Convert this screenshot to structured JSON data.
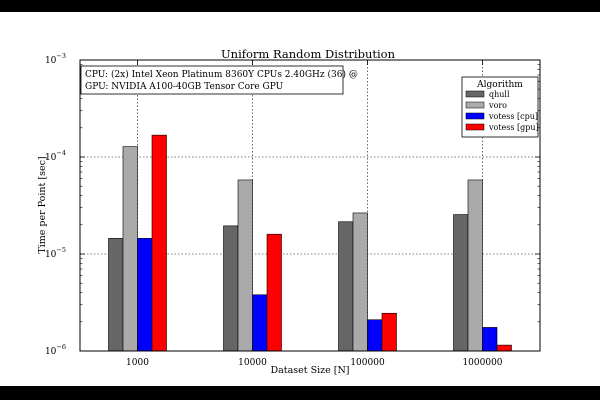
{
  "chart_data": {
    "type": "bar",
    "title": "Uniform Random Distribution",
    "xlabel": "Dataset Size [N]",
    "ylabel": "Time per Point [sec]",
    "yscale": "log",
    "ylim": [
      1e-06,
      0.001
    ],
    "categories": [
      "1000",
      "10000",
      "100000",
      "1000000"
    ],
    "y_ticks": [
      {
        "value": 1e-06,
        "base": "10",
        "exp": "−6"
      },
      {
        "value": 1e-05,
        "base": "10",
        "exp": "−5"
      },
      {
        "value": 0.0001,
        "base": "10",
        "exp": "−4"
      },
      {
        "value": 0.001,
        "base": "10",
        "exp": "−3"
      }
    ],
    "grid": true,
    "legend_title": "Algorithm",
    "legend_position": "top-right",
    "annotation": [
      "CPU: (2x) Intel Xeon Platinum 8360Y CPUs 2.40GHz (36) @",
      "GPU: NVIDIA A100-40GB Tensor Core GPU"
    ],
    "series": [
      {
        "name": "qhull",
        "color": "#666666",
        "values": [
          1.45e-05,
          1.95e-05,
          2.15e-05,
          2.55e-05
        ]
      },
      {
        "name": "voro",
        "color": "#aaaaaa",
        "values": [
          0.000128,
          5.8e-05,
          2.65e-05,
          5.8e-05
        ]
      },
      {
        "name": "votess [cpu]",
        "color": "#0000ff",
        "values": [
          1.45e-05,
          3.8e-06,
          2.1e-06,
          1.75e-06
        ]
      },
      {
        "name": "votess [gpu]",
        "color": "#ff0000",
        "values": [
          0.000168,
          1.6e-05,
          2.45e-06,
          1.15e-06
        ]
      }
    ]
  }
}
